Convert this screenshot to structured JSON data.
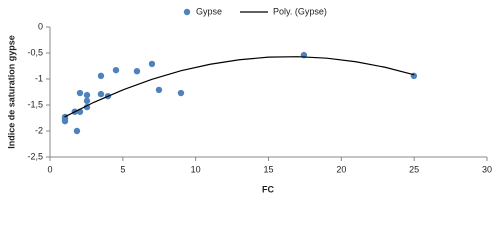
{
  "chart_data": {
    "type": "scatter",
    "xlabel": "FC",
    "ylabel": "Indice de saturation gypse",
    "xlim": [
      0,
      30
    ],
    "xticks": [
      0,
      5,
      10,
      15,
      20,
      25,
      30
    ],
    "ylim": [
      -2.5,
      0
    ],
    "yticks": [
      0,
      {
        "value": -0.5,
        "label": "-0,5"
      },
      -1,
      {
        "value": -1.5,
        "label": "-1,5"
      },
      -2,
      {
        "value": -2.5,
        "label": "-2,5"
      }
    ],
    "grid": false,
    "legend": "top",
    "series": [
      {
        "name": "Gypse",
        "type": "scatter",
        "color": "#4f81bd",
        "x": [
          1.03,
          1.03,
          1.03,
          1.7,
          1.85,
          2.06,
          2.06,
          2.54,
          2.54,
          2.54,
          3.5,
          3.5,
          3.98,
          4.53,
          5.97,
          7.0,
          7.48,
          8.99,
          17.43,
          24.98
        ],
        "values": [
          -1.73,
          -1.81,
          -1.77,
          -1.63,
          -2.0,
          -1.63,
          -1.27,
          -1.31,
          -1.42,
          -1.54,
          -0.94,
          -1.29,
          -1.33,
          -0.83,
          -0.85,
          -0.71,
          -1.21,
          -1.27,
          -0.54,
          -0.94
        ]
      },
      {
        "name": "Poly. (Gypse)",
        "type": "line",
        "color": "#000000",
        "x": [
          1,
          3,
          5,
          7,
          9,
          11,
          13,
          15,
          17,
          19,
          21,
          23,
          25
        ],
        "values": [
          -1.73,
          -1.45,
          -1.21,
          -1.006,
          -0.84,
          -0.716,
          -0.63,
          -0.58,
          -0.571,
          -0.6,
          -0.668,
          -0.774,
          -0.919
        ]
      }
    ]
  }
}
